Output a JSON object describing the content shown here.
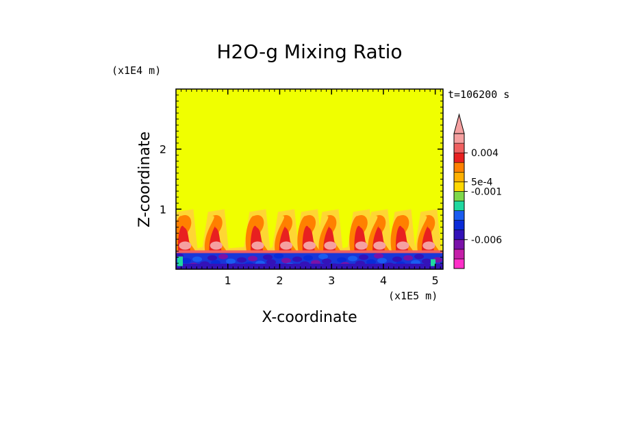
{
  "chart_data": {
    "type": "heatmap",
    "title": "H2O-g Mixing Ratio",
    "xlabel": "X-coordinate",
    "ylabel": "Z-coordinate",
    "x_unit_label": "(x1E5 m)",
    "y_unit_label": "(x1E4 m)",
    "time_label": "t=106200 s",
    "xlim": [
      0,
      5.15
    ],
    "ylim": [
      0,
      3
    ],
    "x_ticks": [
      1,
      2,
      3,
      4,
      5
    ],
    "y_ticks": [
      1,
      2
    ],
    "colorbar": {
      "colors": [
        "#ff2fc8",
        "#c41ea8",
        "#7a12a8",
        "#3412b8",
        "#0a2bd8",
        "#1a5cf0",
        "#1fd8a0",
        "#7ed84a",
        "#ffd700",
        "#ffb000",
        "#ff8000",
        "#e82020",
        "#f06060",
        "#f5a0a0"
      ],
      "tick_labels": [
        {
          "label": "0.004",
          "index": 11
        },
        {
          "label": "5e-4",
          "index": 8
        },
        {
          "label": "-0.001",
          "index": 7
        },
        {
          "label": "-0.006",
          "index": 2
        }
      ],
      "extend": "max"
    },
    "field": {
      "background_color": "#f0ff00",
      "boundary_layer_top": 0.28,
      "plume_top": 1.0,
      "plume_x_positions": [
        0.15,
        0.75,
        1.55,
        2.1,
        2.55,
        2.95,
        3.55,
        3.9,
        4.35,
        4.85
      ]
    }
  }
}
